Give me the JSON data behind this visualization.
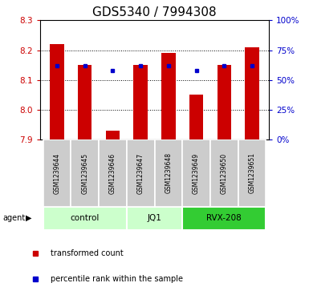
{
  "title": "GDS5340 / 7994308",
  "samples": [
    "GSM1239644",
    "GSM1239645",
    "GSM1239646",
    "GSM1239647",
    "GSM1239648",
    "GSM1239649",
    "GSM1239650",
    "GSM1239651"
  ],
  "bar_values": [
    8.22,
    8.15,
    7.93,
    8.15,
    8.19,
    8.05,
    8.15,
    8.21
  ],
  "bar_bottom": 7.9,
  "percentile_values": [
    62,
    62,
    58,
    62,
    62,
    58,
    62,
    62
  ],
  "ylim": [
    7.9,
    8.3
  ],
  "ylim_right": [
    0,
    100
  ],
  "yticks_left": [
    7.9,
    8.0,
    8.1,
    8.2,
    8.3
  ],
  "yticks_right": [
    0,
    25,
    50,
    75,
    100
  ],
  "bar_color": "#cc0000",
  "dot_color": "#0000cc",
  "groups": [
    {
      "label": "control",
      "start": 0,
      "end": 3
    },
    {
      "label": "JQ1",
      "start": 3,
      "end": 5
    },
    {
      "label": "RVX-208",
      "start": 5,
      "end": 8
    }
  ],
  "group_colors": [
    "#ccffcc",
    "#ccffcc",
    "#33cc33"
  ],
  "agent_label": "agent",
  "legend_bar_label": "transformed count",
  "legend_dot_label": "percentile rank within the sample",
  "title_fontsize": 11,
  "axis_color_left": "#cc0000",
  "axis_color_right": "#0000cc",
  "sample_cell_color": "#cccccc",
  "bar_width": 0.5
}
